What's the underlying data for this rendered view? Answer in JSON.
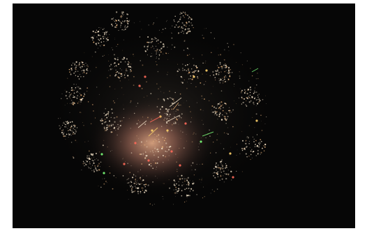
{
  "image": {
    "subject": "fireworks-burst",
    "background_color": "#060606",
    "page_background": "#ffffff",
    "palette": [
      "#f3e2c8",
      "#e9b27a",
      "#ff6a5a",
      "#ffd36a",
      "#7cff7a",
      "#ffffff"
    ]
  }
}
